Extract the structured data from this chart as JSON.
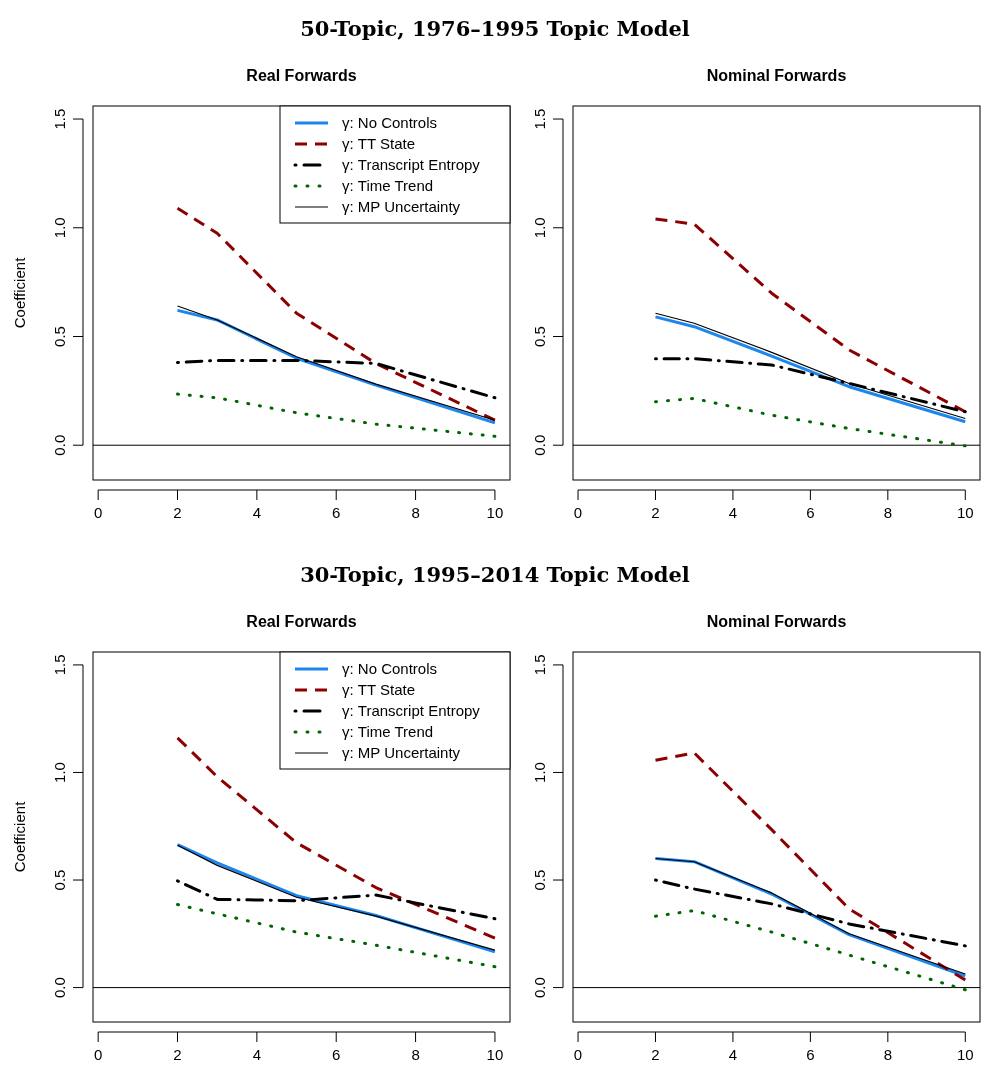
{
  "chart_data": [
    {
      "type": "line",
      "title": "Real Forwards",
      "ylabel": "Coefficient",
      "annotations": [
        "50-Topic, 1976–1995 Topic Model"
      ],
      "x": [
        2,
        3,
        5,
        7,
        10
      ],
      "xlim": [
        -0.13,
        10.38
      ],
      "xticks": [
        0,
        2,
        4,
        6,
        8,
        10
      ],
      "ylim": [
        -0.16,
        1.56
      ],
      "yticks": [
        {
          "value": 0,
          "label": "0.0"
        },
        {
          "value": 0.5,
          "label": "0.5"
        },
        {
          "value": 1,
          "label": "1.0"
        },
        {
          "value": 1.5,
          "label": "1.5"
        }
      ],
      "legend": "top right",
      "ref_lines": [
        {
          "axis": "y",
          "value": 0,
          "color": "#000000"
        }
      ],
      "series": [
        {
          "name": "γ: No Controls",
          "color": "#1c86ee",
          "line_style": "solid",
          "values": [
            0.62,
            0.576,
            0.4,
            0.276,
            0.103
          ]
        },
        {
          "name": "γ: TT State",
          "color": "#8b0000",
          "line_style": "dashed",
          "values": [
            1.09,
            0.975,
            0.607,
            0.376,
            0.115
          ]
        },
        {
          "name": "γ: Transcript Entropy",
          "color": "#000000",
          "line_style": "dashdot",
          "values": [
            0.38,
            0.39,
            0.39,
            0.376,
            0.218
          ]
        },
        {
          "name": "γ: Time Trend",
          "color": "#006400",
          "line_style": "dotted",
          "values": [
            0.235,
            0.218,
            0.149,
            0.097,
            0.041
          ]
        },
        {
          "name": "γ: MP Uncertainty",
          "color": "#000000",
          "line_style": "solid",
          "values": [
            0.64,
            0.576,
            0.407,
            0.281,
            0.115
          ]
        }
      ]
    },
    {
      "type": "line",
      "title": "Nominal Forwards",
      "x": [
        2,
        3,
        5,
        7,
        10
      ],
      "xlim": [
        -0.13,
        10.38
      ],
      "xticks": [
        0,
        2,
        4,
        6,
        8,
        10
      ],
      "ylim": [
        -0.16,
        1.56
      ],
      "yticks": [
        {
          "value": 0,
          "label": "0.0"
        },
        {
          "value": 0.5,
          "label": "0.5"
        },
        {
          "value": 1,
          "label": "1.0"
        },
        {
          "value": 1.5,
          "label": "1.5"
        }
      ],
      "ref_lines": [
        {
          "axis": "y",
          "value": 0,
          "color": "#000000"
        }
      ],
      "series": [
        {
          "color": "#1c86ee",
          "line_style": "solid",
          "values": [
            0.59,
            0.545,
            0.41,
            0.269,
            0.108
          ]
        },
        {
          "color": "#8b0000",
          "line_style": "dashed",
          "values": [
            1.04,
            1.017,
            0.699,
            0.438,
            0.154
          ]
        },
        {
          "color": "#000000",
          "line_style": "dashdot",
          "values": [
            0.398,
            0.398,
            0.369,
            0.284,
            0.154
          ]
        },
        {
          "color": "#006400",
          "line_style": "dotted",
          "values": [
            0.2,
            0.215,
            0.138,
            0.077,
            -0.003
          ]
        },
        {
          "color": "#000000",
          "line_style": "solid",
          "values": [
            0.607,
            0.561,
            0.427,
            0.284,
            0.123
          ]
        }
      ]
    },
    {
      "type": "line",
      "title": "Real Forwards",
      "ylabel": "Coefficient",
      "annotations": [
        "30-Topic, 1995–2014 Topic Model"
      ],
      "x": [
        2,
        3,
        5,
        7,
        10
      ],
      "xlim": [
        -0.13,
        10.38
      ],
      "xticks": [
        0,
        2,
        4,
        6,
        8,
        10
      ],
      "ylim": [
        -0.16,
        1.56
      ],
      "yticks": [
        {
          "value": 0,
          "label": "0.0"
        },
        {
          "value": 0.5,
          "label": "0.5"
        },
        {
          "value": 1,
          "label": "1.0"
        },
        {
          "value": 1.5,
          "label": "1.5"
        }
      ],
      "legend": "top right",
      "ref_lines": [
        {
          "axis": "y",
          "value": 0,
          "color": "#000000"
        }
      ],
      "series": [
        {
          "name": "γ: No Controls",
          "color": "#1c86ee",
          "line_style": "solid",
          "values": [
            0.665,
            0.58,
            0.427,
            0.335,
            0.166
          ]
        },
        {
          "name": "γ: TT State",
          "color": "#8b0000",
          "line_style": "dashed",
          "values": [
            1.161,
            0.98,
            0.673,
            0.465,
            0.23
          ]
        },
        {
          "name": "γ: Transcript Entropy",
          "color": "#000000",
          "line_style": "dashdot",
          "values": [
            0.496,
            0.41,
            0.404,
            0.43,
            0.32
          ]
        },
        {
          "name": "γ: Time Trend",
          "color": "#006400",
          "line_style": "dotted",
          "values": [
            0.386,
            0.343,
            0.258,
            0.197,
            0.097
          ]
        },
        {
          "name": "γ: MP Uncertainty",
          "color": "#000000",
          "line_style": "solid",
          "values": [
            0.662,
            0.568,
            0.42,
            0.332,
            0.174
          ]
        }
      ]
    },
    {
      "type": "line",
      "title": "Nominal Forwards",
      "x": [
        2,
        3,
        5,
        7,
        10
      ],
      "xlim": [
        -0.13,
        10.38
      ],
      "xticks": [
        0,
        2,
        4,
        6,
        8,
        10
      ],
      "ylim": [
        -0.16,
        1.56
      ],
      "yticks": [
        {
          "value": 0,
          "label": "0.0"
        },
        {
          "value": 0.5,
          "label": "0.5"
        },
        {
          "value": 1,
          "label": "1.0"
        },
        {
          "value": 1.5,
          "label": "1.5"
        }
      ],
      "ref_lines": [
        {
          "axis": "y",
          "value": 0,
          "color": "#000000"
        }
      ],
      "series": [
        {
          "color": "#1c86ee",
          "line_style": "solid",
          "values": [
            0.6,
            0.585,
            0.435,
            0.246,
            0.054
          ]
        },
        {
          "color": "#8b0000",
          "line_style": "dashed",
          "values": [
            1.057,
            1.091,
            0.734,
            0.366,
            0.035
          ]
        },
        {
          "color": "#000000",
          "line_style": "dashdot",
          "values": [
            0.5,
            0.458,
            0.389,
            0.296,
            0.194
          ]
        },
        {
          "color": "#006400",
          "line_style": "dotted",
          "values": [
            0.332,
            0.358,
            0.258,
            0.151,
            -0.01
          ]
        },
        {
          "color": "#000000",
          "line_style": "solid",
          "values": [
            0.6,
            0.585,
            0.44,
            0.25,
            0.063
          ]
        }
      ]
    }
  ]
}
